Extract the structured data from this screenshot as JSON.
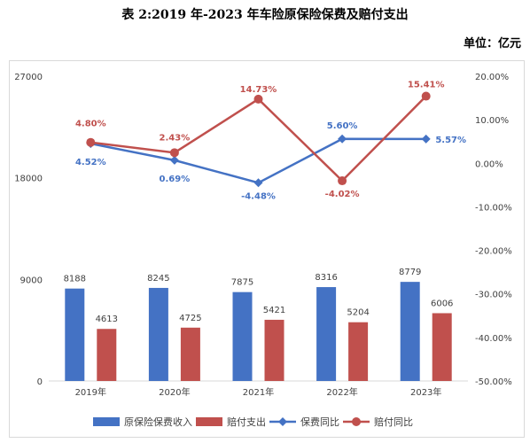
{
  "title": "表 2:2019 年-2023 年车险原保险保费及赔付支出",
  "unit_label": "单位：亿元",
  "chart_data": {
    "type": "bar",
    "categories": [
      "2019年",
      "2020年",
      "2021年",
      "2022年",
      "2023年"
    ],
    "series": [
      {
        "name": "原保险保费收入",
        "type": "bar",
        "axis": "left",
        "color": "#4472c4",
        "values": [
          8188,
          8245,
          7875,
          8316,
          8779
        ]
      },
      {
        "name": "赔付支出",
        "type": "bar",
        "axis": "left",
        "color": "#c0504d",
        "values": [
          4613,
          4725,
          5421,
          5204,
          6006
        ]
      },
      {
        "name": "保费同比",
        "type": "line",
        "axis": "right",
        "color": "#4472c4",
        "marker": "diamond",
        "values": [
          4.52,
          0.69,
          -4.48,
          5.6,
          5.57
        ],
        "labels": [
          "4.52%",
          "0.69%",
          "-4.48%",
          "5.60%",
          "5.57%"
        ]
      },
      {
        "name": "赔付同比",
        "type": "line",
        "axis": "right",
        "color": "#c0504d",
        "marker": "circle",
        "values": [
          4.8,
          2.43,
          14.73,
          -4.02,
          15.41
        ],
        "labels": [
          "4.80%",
          "2.43%",
          "14.73%",
          "-4.02%",
          "15.41%"
        ]
      }
    ],
    "left_axis": {
      "range": [
        0,
        27000
      ],
      "ticks": [
        "0",
        "9000",
        "18000",
        "27000"
      ]
    },
    "right_axis": {
      "range": [
        -50,
        20
      ],
      "ticks": [
        "20.00%",
        "10.00%",
        "0.00%",
        "-10.00%",
        "-20.00%",
        "-30.00%",
        "-40.00%",
        "-50.00%"
      ]
    },
    "grid": false,
    "legend_position": "bottom"
  }
}
